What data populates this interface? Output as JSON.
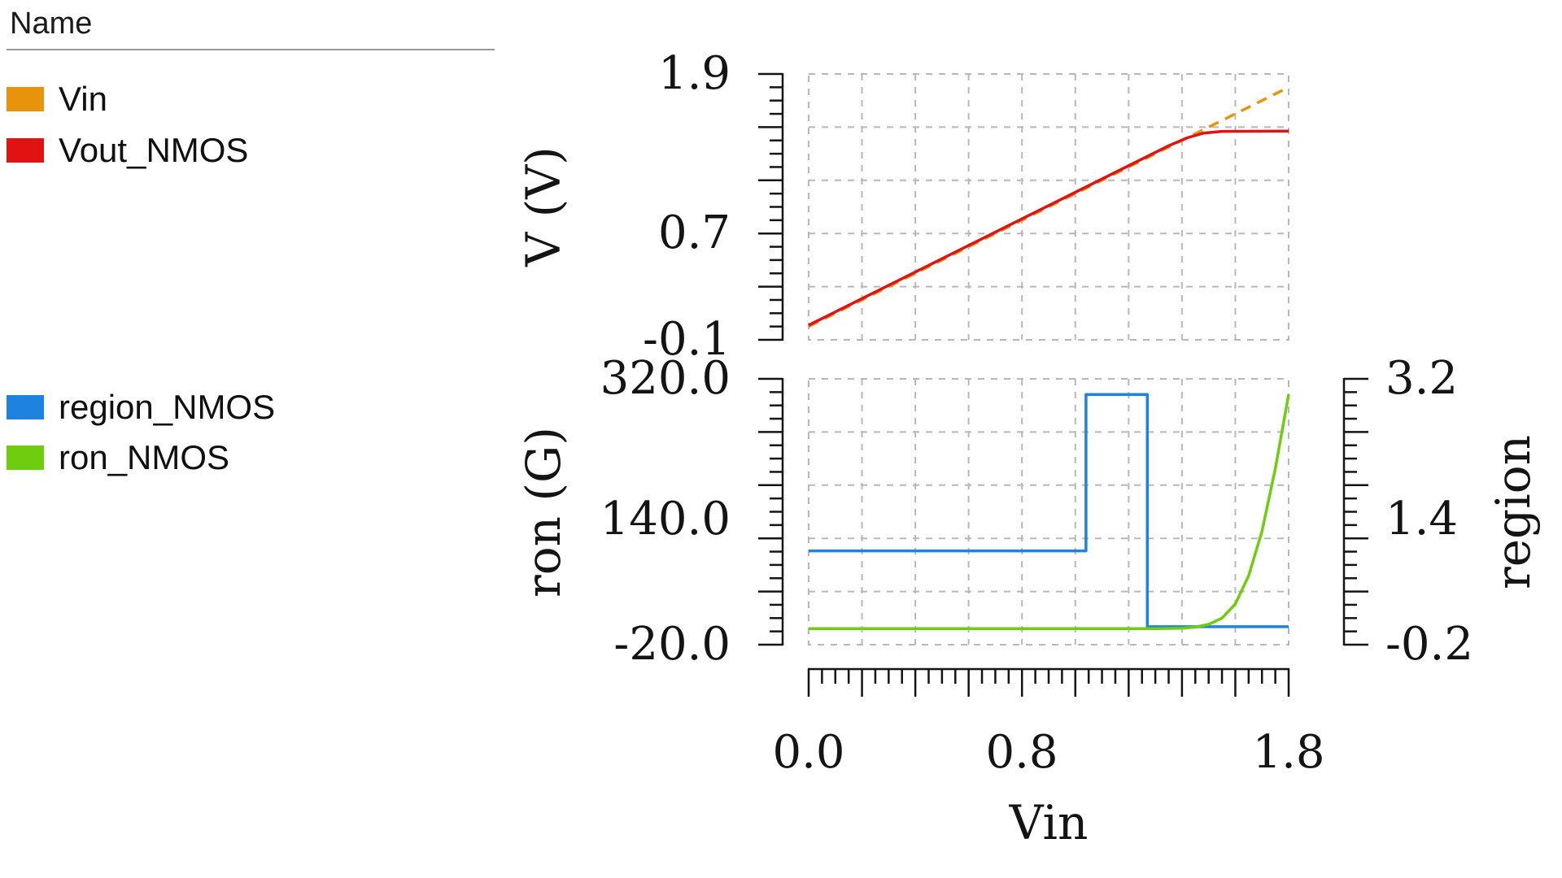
{
  "window": {
    "background": "#ffffff"
  },
  "legend": {
    "header": "Name",
    "groups": [
      {
        "items": [
          {
            "label": "Vin",
            "color": "#e8930c"
          },
          {
            "label": "Vout_NMOS",
            "color": "#e01212"
          }
        ]
      },
      {
        "items": [
          {
            "label": "region_NMOS",
            "color": "#1e82e0"
          },
          {
            "label": "ron_NMOS",
            "color": "#6fcc0e"
          }
        ]
      }
    ]
  },
  "chart_data": [
    {
      "type": "line",
      "title": "",
      "xlabel": "Vin",
      "ylabel": "V (V)",
      "xlim": [
        0.0,
        1.8
      ],
      "ylim": [
        -0.1,
        1.9
      ],
      "grid": true,
      "grid_style": "dashed",
      "x_grid_step": 0.2,
      "y_grid_step": 0.4,
      "y_tick_labels": [
        {
          "text": "1.9",
          "value": 1.9
        },
        {
          "text": "0.7",
          "value": 0.7
        },
        {
          "text": "-0.1",
          "value": -0.1
        }
      ],
      "series": [
        {
          "name": "Vin",
          "color": "#e8930c",
          "line_style": "dashed",
          "axis": "left",
          "points": [
            [
              0.0,
              0.0
            ],
            [
              1.8,
              1.8
            ]
          ]
        },
        {
          "name": "Vout_NMOS",
          "color": "#e01212",
          "line_style": "solid",
          "axis": "left",
          "points": [
            [
              0.0,
              0.01
            ],
            [
              1.35,
              1.36
            ],
            [
              1.42,
              1.42
            ],
            [
              1.48,
              1.455
            ],
            [
              1.55,
              1.468
            ],
            [
              1.8,
              1.47
            ]
          ]
        }
      ]
    },
    {
      "type": "line",
      "title": "",
      "xlabel": "Vin",
      "xlim": [
        0.0,
        1.8
      ],
      "grid": true,
      "grid_style": "dashed",
      "x_grid_step": 0.2,
      "x_tick_labels": [
        {
          "text": "0.0",
          "value": 0.0
        },
        {
          "text": "0.8",
          "value": 0.8
        },
        {
          "text": "1.8",
          "value": 1.8
        }
      ],
      "left_axis": {
        "label": "ron (G)",
        "lim": [
          -20.0,
          320.0
        ],
        "tick_labels": [
          {
            "text": "320.0",
            "value": 320.0
          },
          {
            "text": "140.0",
            "value": 140.0
          },
          {
            "text": "-20.0",
            "value": -20.0
          }
        ]
      },
      "right_axis": {
        "label": "region",
        "lim": [
          -0.2,
          3.2
        ],
        "tick_labels": [
          {
            "text": "3.2",
            "value": 3.2
          },
          {
            "text": "1.4",
            "value": 1.4
          },
          {
            "text": "-0.2",
            "value": -0.2
          }
        ]
      },
      "series": [
        {
          "name": "region_NMOS",
          "color": "#1e82e0",
          "line_style": "solid",
          "axis": "right",
          "points": [
            [
              0.0,
              1.0
            ],
            [
              1.04,
              1.0
            ],
            [
              1.04,
              3.0
            ],
            [
              1.27,
              3.0
            ],
            [
              1.27,
              0.03
            ],
            [
              1.8,
              0.03
            ]
          ]
        },
        {
          "name": "ron_NMOS",
          "color": "#6fcc0e",
          "line_style": "solid",
          "axis": "left",
          "points": [
            [
              0.0,
              0.5
            ],
            [
              1.3,
              0.5
            ],
            [
              1.4,
              1.0
            ],
            [
              1.45,
              2.5
            ],
            [
              1.5,
              6.0
            ],
            [
              1.55,
              14.0
            ],
            [
              1.6,
              32.0
            ],
            [
              1.65,
              68.0
            ],
            [
              1.7,
              125.0
            ],
            [
              1.75,
              205.0
            ],
            [
              1.8,
              300.0
            ]
          ]
        }
      ]
    }
  ]
}
